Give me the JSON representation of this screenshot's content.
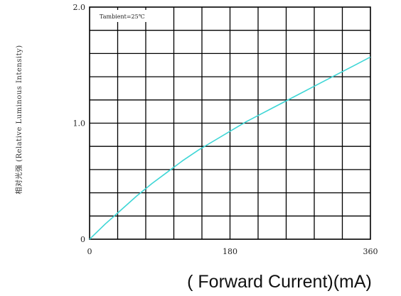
{
  "chart_data": {
    "type": "line",
    "xlabel": "( Forward Current)(mA)",
    "ylabel": "相对光强 (Relative Luminous Intensity)",
    "annotation": "Tambient=25℃",
    "xlim": [
      0,
      360
    ],
    "ylim": [
      0,
      2.0
    ],
    "x_ticks": [
      "0",
      "180",
      "360"
    ],
    "y_ticks": [
      "0",
      "1.0",
      "2.0"
    ],
    "grid": true,
    "line_color": "#3ed6d6",
    "series": [
      {
        "x": [
          0,
          20,
          40,
          60,
          80,
          100,
          120,
          140,
          160,
          180,
          200,
          220,
          240,
          260,
          280,
          300,
          320,
          340,
          360
        ],
        "y": [
          0,
          0.13,
          0.25,
          0.37,
          0.48,
          0.58,
          0.68,
          0.77,
          0.85,
          0.93,
          1.01,
          1.08,
          1.15,
          1.22,
          1.29,
          1.36,
          1.43,
          1.5,
          1.57
        ]
      }
    ]
  }
}
